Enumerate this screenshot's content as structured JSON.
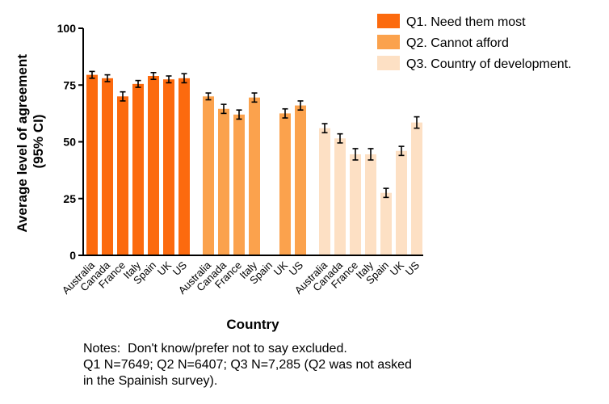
{
  "chart_data": {
    "type": "bar",
    "title": "",
    "xlabel": "Country",
    "ylabel_line1": "Average level of agreement",
    "ylabel_line2": "(95% CI)",
    "ylim": [
      0,
      100
    ],
    "yticks": [
      0,
      25,
      50,
      75,
      100
    ],
    "legend_position": "top-right",
    "categories": [
      "Australia",
      "Canada",
      "France",
      "Italy",
      "Spain",
      "UK",
      "US"
    ],
    "series": [
      {
        "name": "Q1. Need them most",
        "color": "#fc6a0e",
        "values": [
          79.5,
          78,
          70,
          75.5,
          79,
          77.5,
          78
        ],
        "error": [
          1.5,
          1.5,
          2,
          1.5,
          1.5,
          1.5,
          2
        ]
      },
      {
        "name": "Q2. Cannot afford",
        "color": "#fba24d",
        "values": [
          70,
          64.5,
          62,
          69.5,
          null,
          62.5,
          66
        ],
        "error": [
          1.5,
          2,
          2,
          2,
          null,
          2,
          2
        ]
      },
      {
        "name": "Q3. Country of development.",
        "color": "#fde0c4",
        "values": [
          56,
          51.5,
          44.5,
          44.5,
          27.5,
          46,
          58.5
        ],
        "error": [
          2,
          2,
          2.5,
          2.5,
          2,
          2,
          2.5
        ]
      }
    ]
  },
  "notes": {
    "line1": "Notes:  Don't know/prefer not to say excluded.",
    "line2": "Q1 N=7649; Q2 N=6407; Q3 N=7,285 (Q2 was not asked",
    "line3": "in the Spainish survey)."
  }
}
